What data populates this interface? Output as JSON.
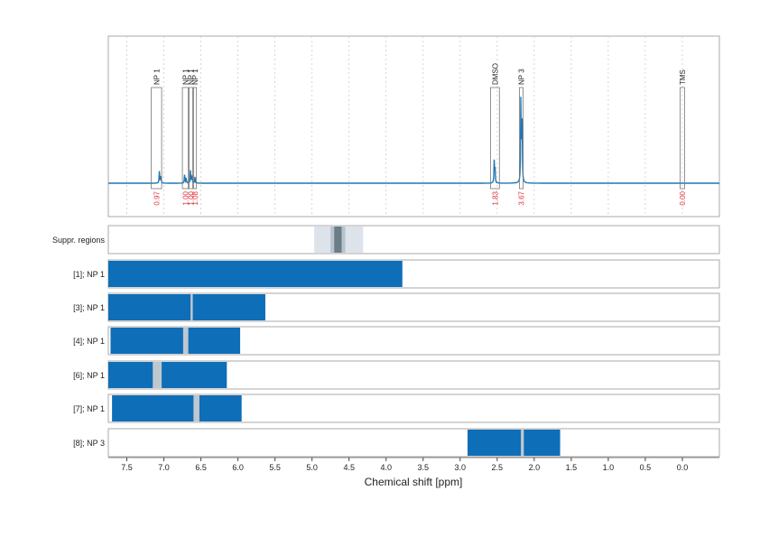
{
  "colors": {
    "spectrum": "#1f77b4",
    "bar": "#0f6eb8",
    "gap": "#bfc7cf",
    "suppr_outer": "#dde3ea",
    "suppr_mid": "#b8c3cc",
    "suppr_core": "#6b7d89",
    "integral": "#e0333c",
    "frame": "#aaaaaa",
    "grid": "#cccccc"
  },
  "chart_data": [
    {
      "type": "line",
      "panel": "spectrum",
      "xlim": [
        7.75,
        -0.5
      ],
      "x_reversed": true,
      "grid": true,
      "peaks": [
        {
          "ppm": 7.06,
          "height": 0.13
        },
        {
          "ppm": 7.04,
          "height": 0.09
        },
        {
          "ppm": 6.72,
          "height": 0.08
        },
        {
          "ppm": 6.7,
          "height": 0.06
        },
        {
          "ppm": 6.64,
          "height": 0.13
        },
        {
          "ppm": 6.62,
          "height": 0.1
        },
        {
          "ppm": 6.58,
          "height": 0.06
        },
        {
          "ppm": 2.54,
          "height": 0.21
        },
        {
          "ppm": 2.53,
          "height": 0.16
        },
        {
          "ppm": 2.18,
          "height": 0.83
        },
        {
          "ppm": 2.165,
          "height": 0.78
        }
      ],
      "annotations": [
        {
          "label": "NP 1",
          "ppm_from": 7.17,
          "ppm_to": 7.03,
          "integral": "0.97"
        },
        {
          "label": "NP 1",
          "ppm_from": 6.75,
          "ppm_to": 6.67,
          "integral": "1.00"
        },
        {
          "label": "NP 1",
          "ppm_from": 6.66,
          "ppm_to": 6.61,
          "integral": "1.00"
        },
        {
          "label": "NP 1",
          "ppm_from": 6.6,
          "ppm_to": 6.56,
          "integral": "1.08"
        },
        {
          "label": "DMSO",
          "ppm_from": 2.59,
          "ppm_to": 2.47,
          "integral": "1.83"
        },
        {
          "label": "NP 3",
          "ppm_from": 2.2,
          "ppm_to": 2.15,
          "integral": "3.67"
        },
        {
          "label": "TMS",
          "ppm_from": 0.03,
          "ppm_to": -0.03,
          "integral": "0.00"
        }
      ]
    },
    {
      "type": "bar",
      "orientation": "horizontal-range",
      "xlabel": "Chemical shift [ppm]",
      "xlim": [
        7.75,
        -0.5
      ],
      "x_reversed": true,
      "xticks": [
        "7.5",
        "7.0",
        "6.5",
        "6.0",
        "5.5",
        "5.0",
        "4.5",
        "4.0",
        "3.5",
        "3.0",
        "2.5",
        "2.0",
        "1.5",
        "1.0",
        "0.5",
        "0.0"
      ],
      "suppression": {
        "label": "Suppr. regions",
        "outer": [
          4.97,
          4.31
        ],
        "mid": [
          4.75,
          4.55
        ],
        "core": [
          4.7,
          4.6
        ]
      },
      "rows": [
        {
          "label": "[1]; NP 1",
          "ranges": [
            [
              7.75,
              3.78
            ]
          ],
          "gaps": []
        },
        {
          "label": "[3]; NP 1",
          "ranges": [
            [
              7.75,
              5.63
            ]
          ],
          "gaps": [
            [
              6.64,
              6.61
            ]
          ]
        },
        {
          "label": "[4]; NP 1",
          "ranges": [
            [
              7.72,
              5.97
            ]
          ],
          "gaps": [
            [
              6.74,
              6.67
            ]
          ]
        },
        {
          "label": "[6]; NP 1",
          "ranges": [
            [
              7.75,
              6.15
            ]
          ],
          "gaps": [
            [
              7.15,
              7.03
            ]
          ]
        },
        {
          "label": "[7]; NP 1",
          "ranges": [
            [
              7.7,
              5.95
            ]
          ],
          "gaps": [
            [
              6.6,
              6.52
            ]
          ]
        },
        {
          "label": "[8]; NP 3",
          "ranges": [
            [
              2.9,
              1.65
            ]
          ],
          "gaps": [
            [
              2.18,
              2.14
            ]
          ]
        }
      ]
    }
  ]
}
